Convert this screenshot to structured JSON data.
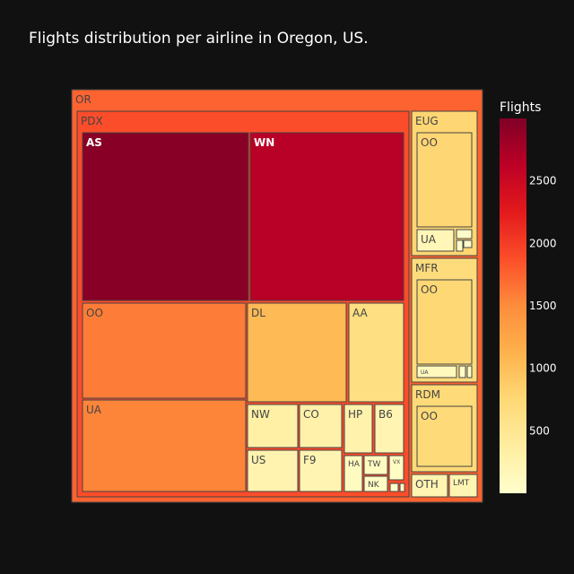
{
  "chart_data": {
    "type": "treemap",
    "title": "Flights distribution per airline in Oregon, US.",
    "colorbar": {
      "title": "Flights",
      "range": [
        0,
        3000
      ],
      "ticks": [
        500,
        1000,
        1500,
        2000,
        2500
      ],
      "colorscale": [
        "#ffffcc",
        "#ffeda0",
        "#fed976",
        "#feb24c",
        "#fd8d3c",
        "#fc4e2a",
        "#e31a1c",
        "#bd0026",
        "#800026"
      ]
    },
    "root": {
      "label": "OR",
      "value": 1750,
      "children": [
        {
          "label": "PDX",
          "value": 1880,
          "children": [
            {
              "label": "AS",
              "value": 2950
            },
            {
              "label": "WN",
              "value": 2650
            },
            {
              "label": "OO",
              "value": 1600
            },
            {
              "label": "DL",
              "value": 1050
            },
            {
              "label": "AA",
              "value": 640
            },
            {
              "label": "UA",
              "value": 1550
            },
            {
              "label": "NW",
              "value": 320
            },
            {
              "label": "CO",
              "value": 290
            },
            {
              "label": "HP",
              "value": 270
            },
            {
              "label": "B6",
              "value": 230
            },
            {
              "label": "US",
              "value": 250
            },
            {
              "label": "F9",
              "value": 230
            },
            {
              "label": "HA",
              "value": 110
            },
            {
              "label": "TW",
              "value": 90
            },
            {
              "label": "VX",
              "value": 70
            },
            {
              "label": "NK",
              "value": 60
            },
            {
              "label": "",
              "value": 20
            },
            {
              "label": "",
              "value": 15
            }
          ]
        },
        {
          "label": "EUG",
          "value": 780,
          "children": [
            {
              "label": "OO",
              "value": 780
            },
            {
              "label": "UA",
              "value": 180
            },
            {
              "label": "",
              "value": 40
            },
            {
              "label": "",
              "value": 30
            },
            {
              "label": "",
              "value": 20
            }
          ]
        },
        {
          "label": "MFR",
          "value": 700,
          "children": [
            {
              "label": "OO",
              "value": 760
            },
            {
              "label": "UA",
              "value": 120
            },
            {
              "label": "",
              "value": 40
            },
            {
              "label": "",
              "value": 20
            }
          ]
        },
        {
          "label": "RDM",
          "value": 730,
          "children": [
            {
              "label": "OO",
              "value": 730
            }
          ]
        },
        {
          "label": "OTH",
          "value": 230
        },
        {
          "label": "LMT",
          "value": 210
        }
      ]
    }
  }
}
